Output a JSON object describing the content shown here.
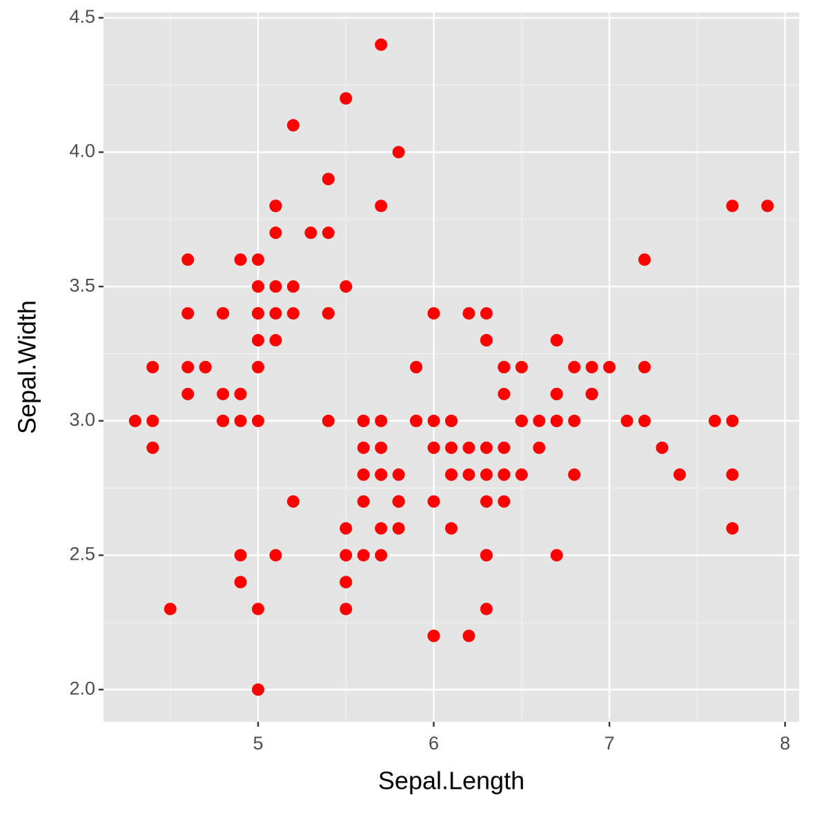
{
  "chart_data": {
    "type": "scatter",
    "x_label": "Sepal.Length",
    "y_label": "Sepal.Width",
    "xlim": [
      4.12,
      8.08
    ],
    "ylim": [
      1.88,
      4.52
    ],
    "xticks": [
      5,
      6,
      7,
      8
    ],
    "yticks": [
      {
        "value": 2,
        "label": "2.0"
      },
      2.5,
      {
        "value": 3,
        "label": "3.0"
      },
      3.5,
      {
        "value": 4,
        "label": "4.0"
      },
      4.5
    ],
    "grid": true,
    "color": "#ff0000",
    "x": [
      5.1,
      4.9,
      4.7,
      4.6,
      5.0,
      5.4,
      4.6,
      5.0,
      4.4,
      4.9,
      5.4,
      4.8,
      4.8,
      4.3,
      5.8,
      5.7,
      5.4,
      5.1,
      5.7,
      5.1,
      5.4,
      5.1,
      4.6,
      5.1,
      4.8,
      5.0,
      5.0,
      5.2,
      5.2,
      4.7,
      4.8,
      5.4,
      5.2,
      5.5,
      4.9,
      5.0,
      5.5,
      4.9,
      4.4,
      5.1,
      5.0,
      4.5,
      4.4,
      5.0,
      5.1,
      4.8,
      5.1,
      4.6,
      5.3,
      5.0,
      7.0,
      6.4,
      6.9,
      5.5,
      6.5,
      5.7,
      6.3,
      4.9,
      6.6,
      5.2,
      5.0,
      5.9,
      6.0,
      6.1,
      5.6,
      6.7,
      5.6,
      5.8,
      6.2,
      5.6,
      5.9,
      6.1,
      6.3,
      6.1,
      6.4,
      6.6,
      6.8,
      6.7,
      6.0,
      5.7,
      5.5,
      5.5,
      5.8,
      6.0,
      5.4,
      6.0,
      6.7,
      6.3,
      5.6,
      5.5,
      5.5,
      6.1,
      5.8,
      5.0,
      5.6,
      5.7,
      5.7,
      6.2,
      5.1,
      5.7,
      6.3,
      5.8,
      7.1,
      6.3,
      6.5,
      7.6,
      4.9,
      7.3,
      6.7,
      7.2,
      6.5,
      6.4,
      6.8,
      5.7,
      5.8,
      6.4,
      6.5,
      7.7,
      7.7,
      6.0,
      6.9,
      5.6,
      7.7,
      6.3,
      6.7,
      7.2,
      6.2,
      6.1,
      6.4,
      7.2,
      7.4,
      7.9,
      6.4,
      6.3,
      6.1,
      7.7,
      6.3,
      6.4,
      6.0,
      6.9,
      6.7,
      6.9,
      5.8,
      6.8,
      6.7,
      6.7,
      6.3,
      6.5,
      6.2,
      5.9
    ],
    "values": [
      3.5,
      3.0,
      3.2,
      3.1,
      3.6,
      3.9,
      3.4,
      3.4,
      2.9,
      3.1,
      3.7,
      3.4,
      3.0,
      3.0,
      4.0,
      4.4,
      3.9,
      3.5,
      3.8,
      3.8,
      3.4,
      3.7,
      3.6,
      3.3,
      3.4,
      3.0,
      3.4,
      3.5,
      3.4,
      3.2,
      3.1,
      3.4,
      4.1,
      4.2,
      3.1,
      3.2,
      3.5,
      3.6,
      3.0,
      3.4,
      3.5,
      2.3,
      3.2,
      3.5,
      3.8,
      3.0,
      3.8,
      3.2,
      3.7,
      3.3,
      3.2,
      3.2,
      3.1,
      2.3,
      2.8,
      2.8,
      3.3,
      2.4,
      2.9,
      2.7,
      2.0,
      3.0,
      2.2,
      2.9,
      2.9,
      3.1,
      3.0,
      2.7,
      2.2,
      2.5,
      3.2,
      2.8,
      2.5,
      2.8,
      2.9,
      3.0,
      2.8,
      3.0,
      2.9,
      2.6,
      2.4,
      2.4,
      2.7,
      2.7,
      3.0,
      3.4,
      3.1,
      2.3,
      3.0,
      2.5,
      2.6,
      3.0,
      2.6,
      2.3,
      2.7,
      3.0,
      2.9,
      2.9,
      2.5,
      2.8,
      3.3,
      2.7,
      3.0,
      2.9,
      3.0,
      3.0,
      2.5,
      2.9,
      2.5,
      3.6,
      3.2,
      2.7,
      3.0,
      2.5,
      2.8,
      3.2,
      3.0,
      3.8,
      2.6,
      2.2,
      3.2,
      2.8,
      2.8,
      2.7,
      3.3,
      3.2,
      2.8,
      3.0,
      2.8,
      3.0,
      2.8,
      3.8,
      2.8,
      2.8,
      2.6,
      3.0,
      3.4,
      3.1,
      3.0,
      3.1,
      3.1,
      3.1,
      2.7,
      3.2,
      3.3,
      3.0,
      2.5,
      3.0,
      3.4,
      3.0
    ]
  }
}
